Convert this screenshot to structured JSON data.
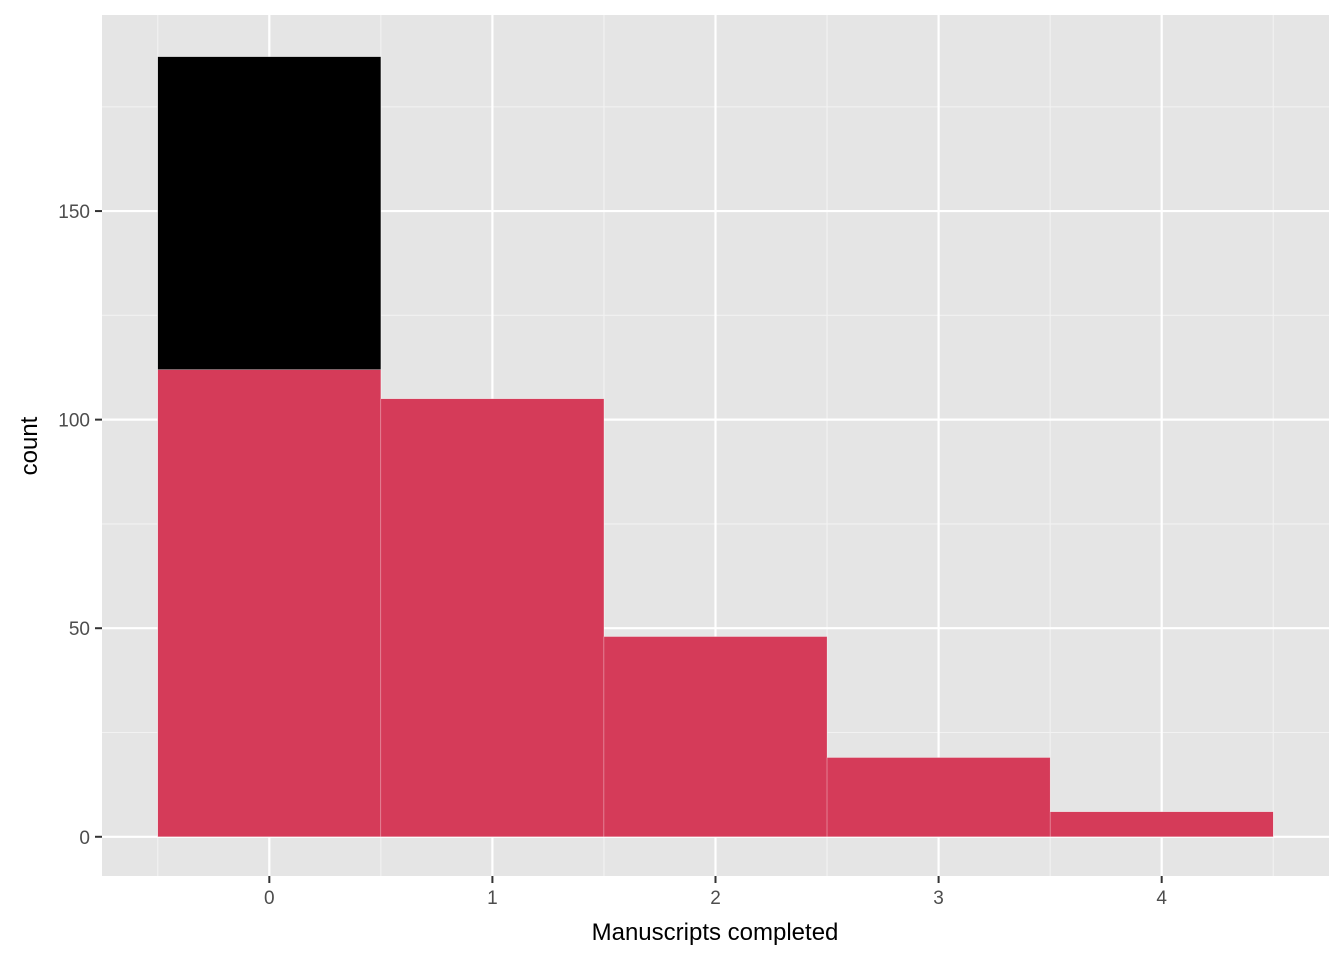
{
  "chart_data": {
    "type": "bar",
    "title": "",
    "xlabel": "Manuscripts completed",
    "ylabel": "count",
    "x_ticks": [
      0,
      1,
      2,
      3,
      4
    ],
    "y_ticks": [
      0,
      50,
      100,
      150
    ],
    "xlim": [
      -0.75,
      4.75
    ],
    "ylim": [
      -9.4,
      197
    ],
    "grid": true,
    "legend": "none",
    "categories": [
      0,
      1,
      2,
      3,
      4
    ],
    "series": [
      {
        "values": [
          112,
          105,
          48,
          19,
          6
        ],
        "color": "#d53b59"
      },
      {
        "values": [
          75,
          0,
          0,
          0,
          0
        ],
        "color": "#000000"
      }
    ],
    "totals": [
      187,
      105,
      48,
      19,
      6
    ],
    "colors": {
      "panel_background": "#e5e5e5",
      "grid_major": "#ffffff",
      "grid_minor": "#f2f2f2",
      "tick_text": "#4d4d4d",
      "tick_mark": "#333333"
    }
  }
}
